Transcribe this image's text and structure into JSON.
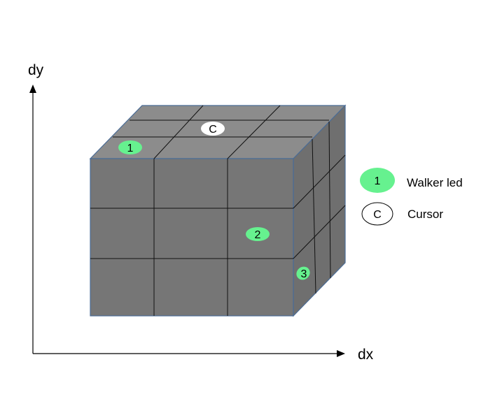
{
  "axes": {
    "x_label": "dx",
    "y_label": "dy"
  },
  "markers": [
    {
      "text": "1",
      "type": "walker-led"
    },
    {
      "text": "C",
      "type": "cursor"
    },
    {
      "text": "2",
      "type": "walker-led"
    },
    {
      "text": "3",
      "type": "walker-led"
    }
  ],
  "legend": [
    {
      "key": "1",
      "label": "Walker led",
      "color": "#66f18f"
    },
    {
      "key": "C",
      "label": "Cursor",
      "color": "#ffffff"
    }
  ],
  "colors": {
    "cube_front": "#757575",
    "cube_top": "#8a8a8a",
    "cube_side": "#6e6e6e",
    "cube_edge": "#4a6c96",
    "led": "#66f18f"
  }
}
